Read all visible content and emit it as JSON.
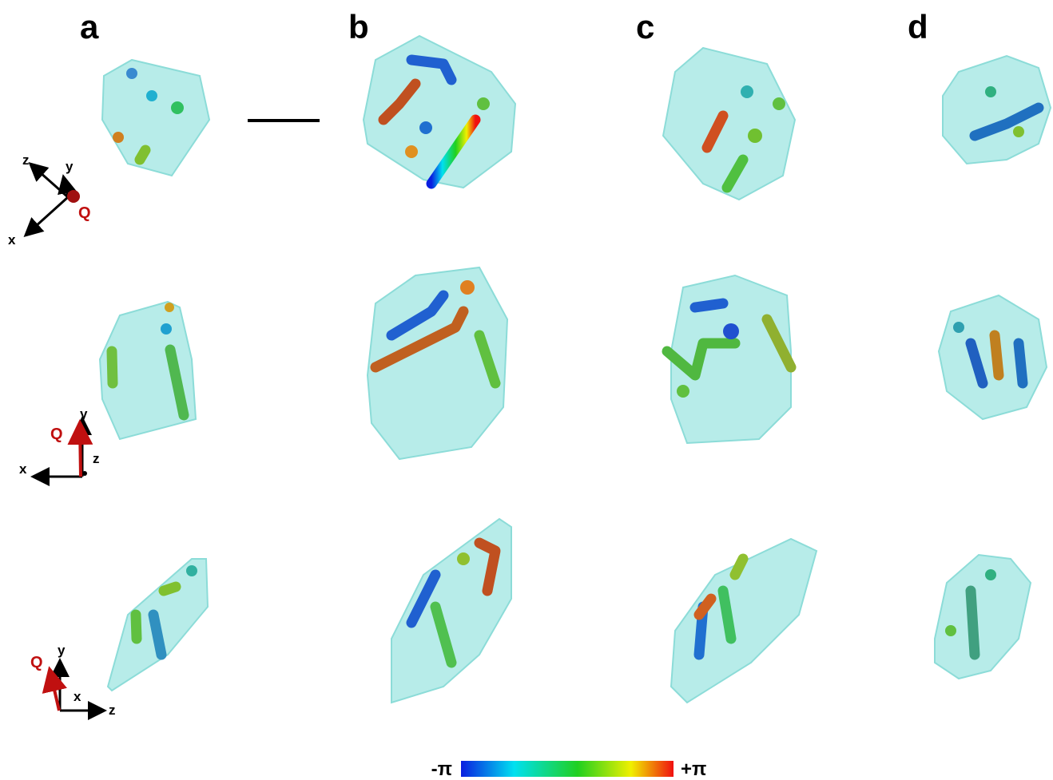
{
  "panels": [
    "a",
    "b",
    "c",
    "d"
  ],
  "triads": [
    {
      "labels": [
        "z",
        "y",
        "Q",
        "x"
      ]
    },
    {
      "labels": [
        "y",
        "Q",
        "z",
        "x"
      ]
    },
    {
      "labels": [
        "Q",
        "y",
        "x",
        "z"
      ]
    }
  ],
  "colorbar": {
    "min_label": "-π",
    "max_label": "+π"
  }
}
